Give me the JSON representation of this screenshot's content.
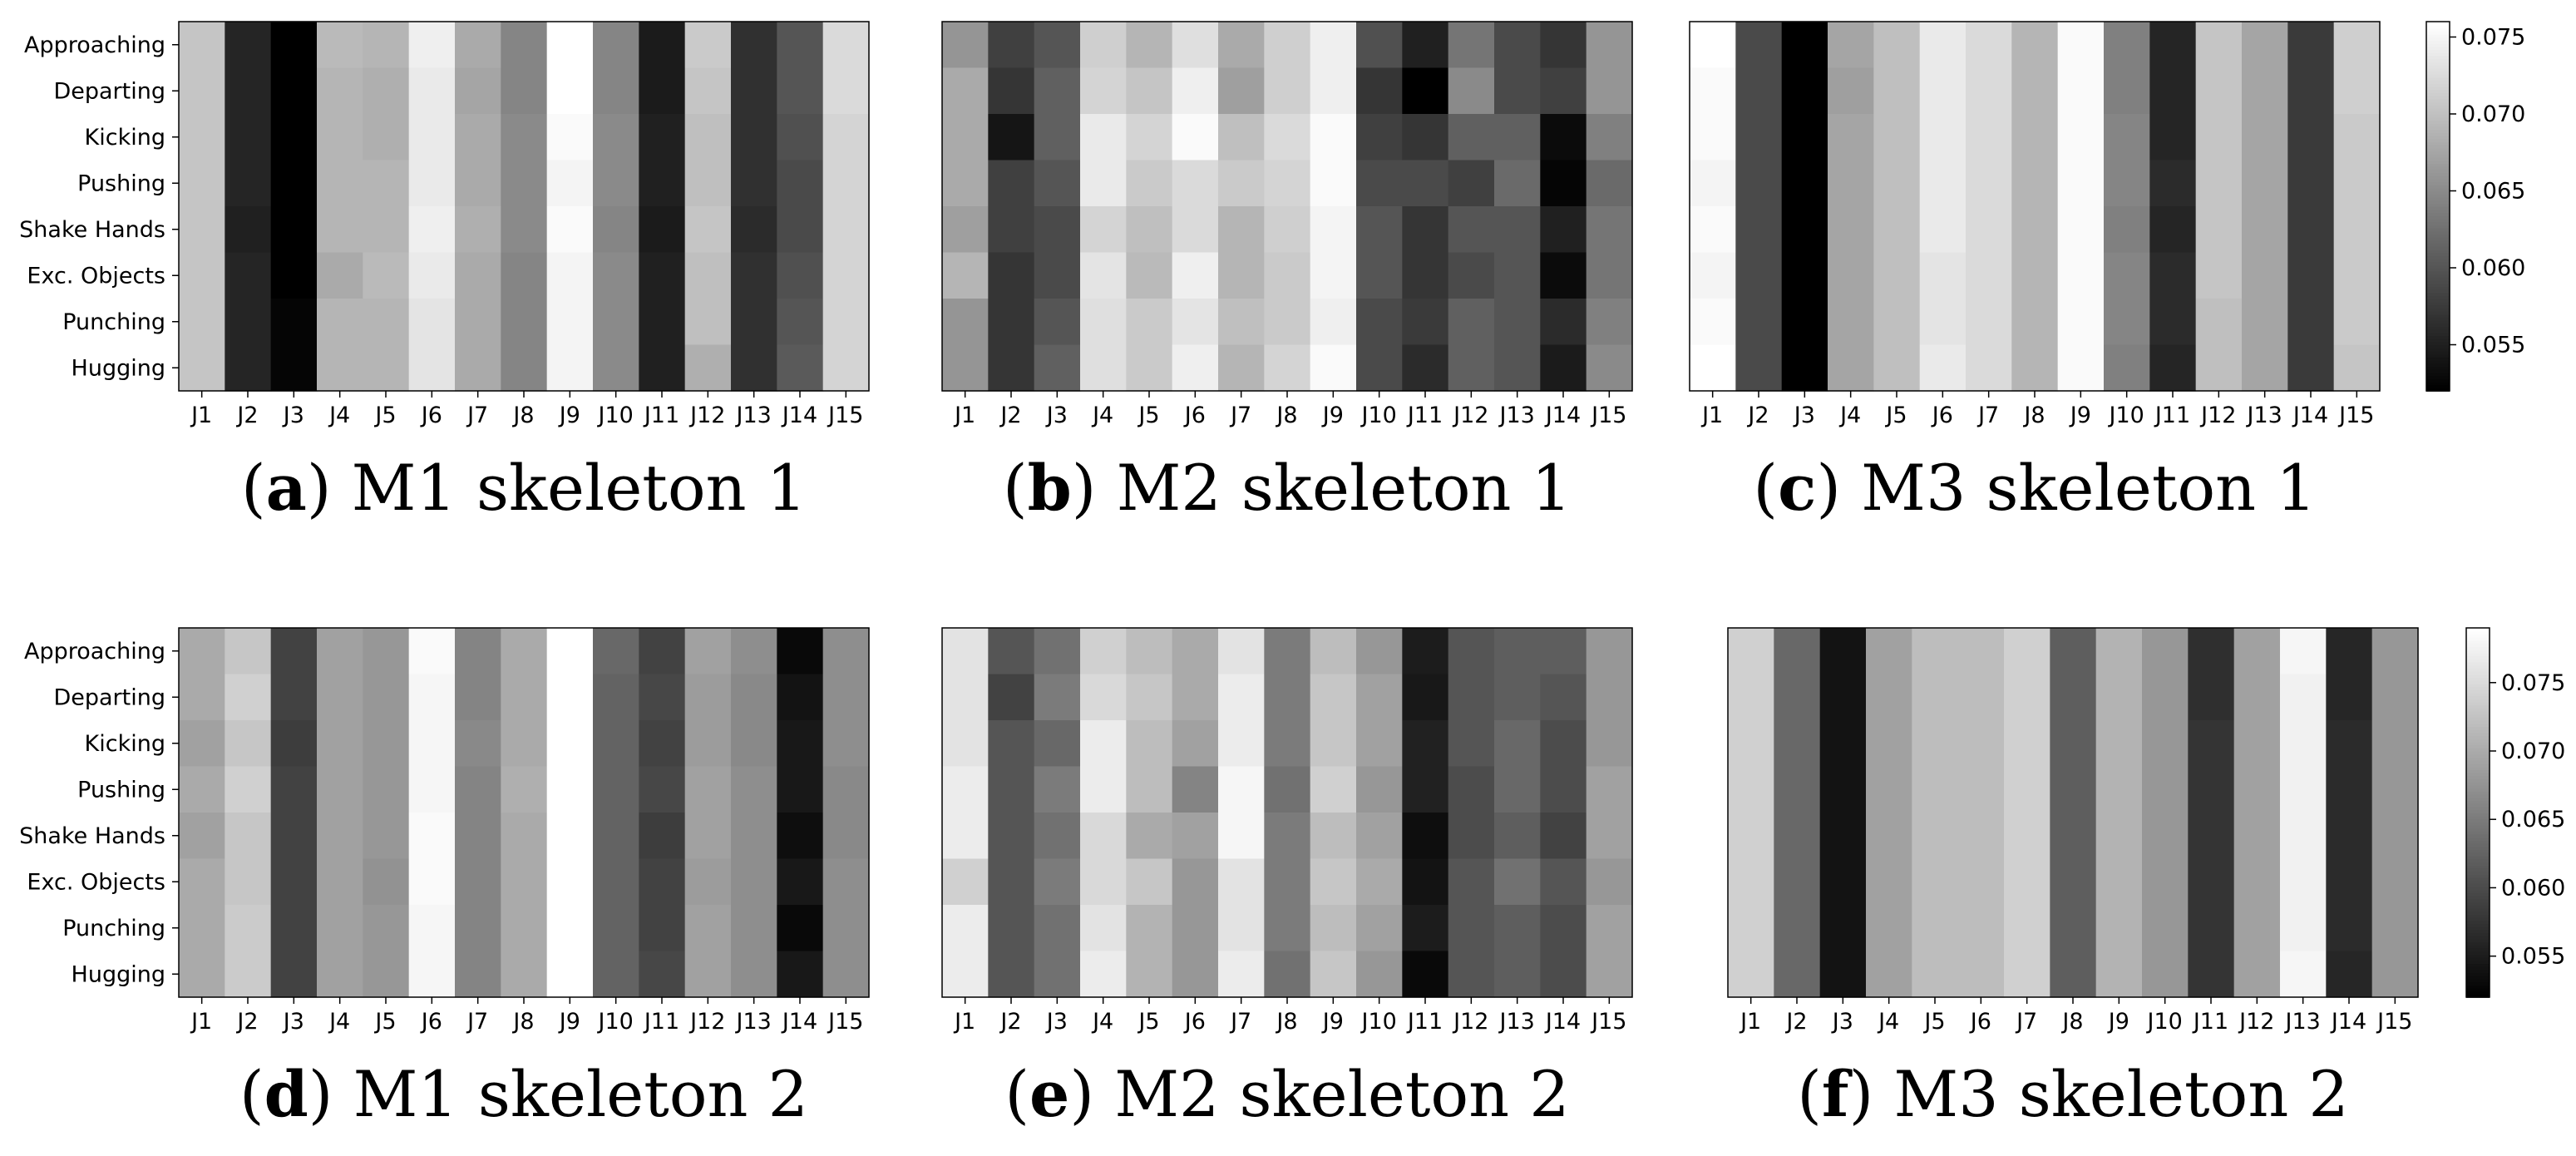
{
  "chart_data": [
    {
      "type": "heatmap",
      "panel_letter": "a",
      "caption": "M1 skeleton 1",
      "rows": [
        "Approaching",
        "Departing",
        "Kicking",
        "Pushing",
        "Shake Hands",
        "Exc. Objects",
        "Punching",
        "Hugging"
      ],
      "columns": [
        "J1",
        "J2",
        "J3",
        "J4",
        "J5",
        "J6",
        "J7",
        "J8",
        "J9",
        "J10",
        "J11",
        "J12",
        "J13",
        "J14",
        "J15"
      ],
      "values": [
        [
          0.0705,
          0.0555,
          0.052,
          0.0695,
          0.069,
          0.0745,
          0.068,
          0.0645,
          0.0765,
          0.0645,
          0.0545,
          0.071,
          0.0565,
          0.06,
          0.0725
        ],
        [
          0.0705,
          0.0555,
          0.052,
          0.069,
          0.0685,
          0.074,
          0.0675,
          0.0645,
          0.076,
          0.0645,
          0.0545,
          0.0705,
          0.0565,
          0.06,
          0.0725
        ],
        [
          0.0705,
          0.0555,
          0.052,
          0.069,
          0.0685,
          0.074,
          0.068,
          0.065,
          0.0755,
          0.065,
          0.055,
          0.07,
          0.0565,
          0.0595,
          0.072
        ],
        [
          0.0705,
          0.0555,
          0.052,
          0.069,
          0.069,
          0.074,
          0.068,
          0.065,
          0.075,
          0.065,
          0.055,
          0.07,
          0.0565,
          0.059,
          0.072
        ],
        [
          0.0705,
          0.055,
          0.052,
          0.069,
          0.069,
          0.0745,
          0.0685,
          0.065,
          0.0755,
          0.0645,
          0.0545,
          0.0705,
          0.056,
          0.059,
          0.072
        ],
        [
          0.0705,
          0.0555,
          0.052,
          0.068,
          0.0695,
          0.074,
          0.068,
          0.0645,
          0.075,
          0.065,
          0.055,
          0.07,
          0.0565,
          0.0595,
          0.072
        ],
        [
          0.0705,
          0.0555,
          0.0525,
          0.069,
          0.069,
          0.0735,
          0.068,
          0.0645,
          0.075,
          0.065,
          0.055,
          0.07,
          0.0565,
          0.06,
          0.072
        ],
        [
          0.0705,
          0.0555,
          0.0525,
          0.069,
          0.069,
          0.0735,
          0.068,
          0.0645,
          0.075,
          0.065,
          0.055,
          0.0685,
          0.0565,
          0.0605,
          0.072
        ]
      ],
      "colorbar": false
    },
    {
      "type": "heatmap",
      "panel_letter": "b",
      "caption": "M2 skeleton 1",
      "rows": [
        "Approaching",
        "Departing",
        "Kicking",
        "Pushing",
        "Shake Hands",
        "Exc. Objects",
        "Punching",
        "Hugging"
      ],
      "columns": [
        "J1",
        "J2",
        "J3",
        "J4",
        "J5",
        "J6",
        "J7",
        "J8",
        "J9",
        "J10",
        "J11",
        "J12",
        "J13",
        "J14",
        "J15"
      ],
      "values": [
        [
          0.066,
          0.058,
          0.06,
          0.0715,
          0.069,
          0.073,
          0.068,
          0.0715,
          0.0745,
          0.0595,
          0.055,
          0.063,
          0.059,
          0.057,
          0.066
        ],
        [
          0.068,
          0.057,
          0.061,
          0.072,
          0.0705,
          0.0745,
          0.067,
          0.0715,
          0.0745,
          0.057,
          0.052,
          0.065,
          0.059,
          0.058,
          0.066
        ],
        [
          0.068,
          0.054,
          0.061,
          0.074,
          0.072,
          0.0755,
          0.07,
          0.0725,
          0.0755,
          0.058,
          0.057,
          0.061,
          0.061,
          0.053,
          0.064
        ],
        [
          0.068,
          0.058,
          0.06,
          0.074,
          0.071,
          0.0725,
          0.071,
          0.072,
          0.0755,
          0.059,
          0.059,
          0.058,
          0.062,
          0.0525,
          0.062
        ],
        [
          0.067,
          0.058,
          0.059,
          0.072,
          0.07,
          0.0725,
          0.069,
          0.0715,
          0.075,
          0.06,
          0.057,
          0.06,
          0.06,
          0.055,
          0.063
        ],
        [
          0.069,
          0.057,
          0.059,
          0.0735,
          0.0695,
          0.0745,
          0.069,
          0.071,
          0.075,
          0.06,
          0.057,
          0.059,
          0.06,
          0.053,
          0.063
        ],
        [
          0.066,
          0.057,
          0.06,
          0.073,
          0.071,
          0.0735,
          0.07,
          0.071,
          0.0745,
          0.059,
          0.0575,
          0.061,
          0.06,
          0.056,
          0.064
        ],
        [
          0.066,
          0.057,
          0.061,
          0.073,
          0.071,
          0.0745,
          0.069,
          0.072,
          0.0755,
          0.059,
          0.056,
          0.061,
          0.06,
          0.0545,
          0.065
        ]
      ],
      "colorbar": false
    },
    {
      "type": "heatmap",
      "panel_letter": "c",
      "caption": "M3 skeleton 1",
      "rows": [
        "Approaching",
        "Departing",
        "Kicking",
        "Pushing",
        "Shake Hands",
        "Exc. Objects",
        "Punching",
        "Hugging"
      ],
      "columns": [
        "J1",
        "J2",
        "J3",
        "J4",
        "J5",
        "J6",
        "J7",
        "J8",
        "J9",
        "J10",
        "J11",
        "J12",
        "J13",
        "J14",
        "J15"
      ],
      "values": [
        [
          0.076,
          0.059,
          0.052,
          0.0675,
          0.07,
          0.074,
          0.0725,
          0.069,
          0.0755,
          0.064,
          0.0555,
          0.0705,
          0.0675,
          0.0575,
          0.0715
        ],
        [
          0.0755,
          0.059,
          0.052,
          0.067,
          0.07,
          0.074,
          0.0725,
          0.069,
          0.0755,
          0.064,
          0.0555,
          0.0705,
          0.0675,
          0.0575,
          0.0715
        ],
        [
          0.0755,
          0.059,
          0.052,
          0.0675,
          0.07,
          0.074,
          0.0725,
          0.069,
          0.0755,
          0.0645,
          0.0555,
          0.0705,
          0.0675,
          0.0575,
          0.071
        ],
        [
          0.075,
          0.059,
          0.052,
          0.0675,
          0.07,
          0.074,
          0.0725,
          0.069,
          0.0755,
          0.0645,
          0.056,
          0.0705,
          0.0675,
          0.0575,
          0.071
        ],
        [
          0.0755,
          0.059,
          0.052,
          0.0675,
          0.07,
          0.074,
          0.0725,
          0.069,
          0.0755,
          0.064,
          0.0555,
          0.0705,
          0.0675,
          0.0575,
          0.071
        ],
        [
          0.075,
          0.059,
          0.052,
          0.0675,
          0.07,
          0.0735,
          0.0725,
          0.069,
          0.0755,
          0.0645,
          0.056,
          0.0705,
          0.0675,
          0.0575,
          0.071
        ],
        [
          0.0755,
          0.059,
          0.052,
          0.0675,
          0.07,
          0.0735,
          0.0725,
          0.069,
          0.0755,
          0.0645,
          0.056,
          0.07,
          0.0675,
          0.0575,
          0.071
        ],
        [
          0.076,
          0.059,
          0.052,
          0.0675,
          0.07,
          0.074,
          0.0725,
          0.069,
          0.0755,
          0.064,
          0.0555,
          0.07,
          0.0675,
          0.0575,
          0.0705
        ]
      ],
      "colorbar": true,
      "colorbar_range": [
        0.052,
        0.076
      ],
      "colorbar_ticks": [
        0.055,
        0.06,
        0.065,
        0.07,
        0.075
      ],
      "colorbar_tick_labels": [
        "0.055",
        "0.060",
        "0.065",
        "0.070",
        "0.075"
      ]
    },
    {
      "type": "heatmap",
      "panel_letter": "d",
      "caption": "M1 skeleton 2",
      "rows": [
        "Approaching",
        "Departing",
        "Kicking",
        "Pushing",
        "Shake Hands",
        "Exc. Objects",
        "Punching",
        "Hugging"
      ],
      "columns": [
        "J1",
        "J2",
        "J3",
        "J4",
        "J5",
        "J6",
        "J7",
        "J8",
        "J9",
        "J10",
        "J11",
        "J12",
        "J13",
        "J14",
        "J15"
      ],
      "values": [
        [
          0.07,
          0.073,
          0.059,
          0.069,
          0.068,
          0.0785,
          0.066,
          0.07,
          0.079,
          0.063,
          0.059,
          0.069,
          0.067,
          0.053,
          0.067
        ],
        [
          0.07,
          0.074,
          0.059,
          0.069,
          0.068,
          0.078,
          0.066,
          0.07,
          0.079,
          0.0625,
          0.0595,
          0.0685,
          0.0665,
          0.054,
          0.067
        ],
        [
          0.069,
          0.073,
          0.0585,
          0.069,
          0.068,
          0.078,
          0.0665,
          0.07,
          0.079,
          0.0625,
          0.059,
          0.0685,
          0.0665,
          0.0545,
          0.067
        ],
        [
          0.07,
          0.074,
          0.059,
          0.069,
          0.068,
          0.078,
          0.066,
          0.0705,
          0.079,
          0.0625,
          0.0595,
          0.069,
          0.067,
          0.0545,
          0.0665
        ],
        [
          0.069,
          0.073,
          0.059,
          0.069,
          0.068,
          0.0785,
          0.066,
          0.07,
          0.079,
          0.0625,
          0.0585,
          0.069,
          0.067,
          0.0535,
          0.0665
        ],
        [
          0.07,
          0.073,
          0.059,
          0.069,
          0.0675,
          0.0785,
          0.066,
          0.07,
          0.079,
          0.0625,
          0.059,
          0.0685,
          0.067,
          0.0545,
          0.067
        ],
        [
          0.07,
          0.0735,
          0.059,
          0.069,
          0.068,
          0.078,
          0.066,
          0.07,
          0.079,
          0.0625,
          0.059,
          0.069,
          0.067,
          0.053,
          0.067
        ],
        [
          0.07,
          0.0735,
          0.059,
          0.069,
          0.068,
          0.078,
          0.066,
          0.07,
          0.079,
          0.0625,
          0.0595,
          0.069,
          0.067,
          0.0545,
          0.067
        ]
      ],
      "colorbar": false
    },
    {
      "type": "heatmap",
      "panel_letter": "e",
      "caption": "M2 skeleton 2",
      "rows": [
        "Approaching",
        "Departing",
        "Kicking",
        "Pushing",
        "Shake Hands",
        "Exc. Objects",
        "Punching",
        "Hugging"
      ],
      "columns": [
        "J1",
        "J2",
        "J3",
        "J4",
        "J5",
        "J6",
        "J7",
        "J8",
        "J9",
        "J10",
        "J11",
        "J12",
        "J13",
        "J14",
        "J15"
      ],
      "values": [
        [
          0.076,
          0.061,
          0.064,
          0.074,
          0.072,
          0.07,
          0.076,
          0.065,
          0.072,
          0.068,
          0.055,
          0.061,
          0.062,
          0.062,
          0.068
        ],
        [
          0.076,
          0.059,
          0.065,
          0.075,
          0.073,
          0.07,
          0.077,
          0.065,
          0.073,
          0.069,
          0.0545,
          0.061,
          0.062,
          0.061,
          0.068
        ],
        [
          0.076,
          0.061,
          0.063,
          0.077,
          0.072,
          0.069,
          0.077,
          0.065,
          0.073,
          0.069,
          0.0555,
          0.061,
          0.063,
          0.06,
          0.068
        ],
        [
          0.077,
          0.061,
          0.065,
          0.077,
          0.072,
          0.066,
          0.078,
          0.064,
          0.074,
          0.068,
          0.0555,
          0.06,
          0.063,
          0.06,
          0.069
        ],
        [
          0.077,
          0.061,
          0.064,
          0.075,
          0.07,
          0.069,
          0.078,
          0.065,
          0.072,
          0.069,
          0.0535,
          0.06,
          0.062,
          0.059,
          0.069
        ],
        [
          0.074,
          0.061,
          0.065,
          0.075,
          0.073,
          0.068,
          0.076,
          0.065,
          0.073,
          0.07,
          0.054,
          0.061,
          0.064,
          0.061,
          0.068
        ],
        [
          0.077,
          0.061,
          0.064,
          0.076,
          0.071,
          0.068,
          0.076,
          0.065,
          0.072,
          0.069,
          0.055,
          0.061,
          0.062,
          0.06,
          0.069
        ],
        [
          0.077,
          0.061,
          0.064,
          0.077,
          0.071,
          0.068,
          0.077,
          0.064,
          0.073,
          0.068,
          0.053,
          0.061,
          0.062,
          0.06,
          0.069
        ]
      ],
      "colorbar": false
    },
    {
      "type": "heatmap",
      "panel_letter": "f",
      "caption": "M3 skeleton 2",
      "rows": [
        "Approaching",
        "Departing",
        "Kicking",
        "Pushing",
        "Shake Hands",
        "Exc. Objects",
        "Punching",
        "Hugging"
      ],
      "columns": [
        "J1",
        "J2",
        "J3",
        "J4",
        "J5",
        "J6",
        "J7",
        "J8",
        "J9",
        "J10",
        "J11",
        "J12",
        "J13",
        "J14",
        "J15"
      ],
      "values": [
        [
          0.074,
          0.063,
          0.054,
          0.069,
          0.072,
          0.072,
          0.074,
          0.062,
          0.071,
          0.068,
          0.057,
          0.069,
          0.078,
          0.056,
          0.068
        ],
        [
          0.074,
          0.063,
          0.054,
          0.069,
          0.072,
          0.072,
          0.074,
          0.062,
          0.071,
          0.068,
          0.057,
          0.069,
          0.0775,
          0.056,
          0.068
        ],
        [
          0.074,
          0.063,
          0.054,
          0.069,
          0.072,
          0.072,
          0.074,
          0.062,
          0.071,
          0.068,
          0.0575,
          0.069,
          0.0775,
          0.0565,
          0.068
        ],
        [
          0.074,
          0.063,
          0.054,
          0.069,
          0.072,
          0.072,
          0.074,
          0.062,
          0.071,
          0.068,
          0.0575,
          0.069,
          0.0775,
          0.0565,
          0.068
        ],
        [
          0.074,
          0.063,
          0.054,
          0.069,
          0.072,
          0.072,
          0.074,
          0.062,
          0.071,
          0.068,
          0.0575,
          0.069,
          0.0775,
          0.0565,
          0.068
        ],
        [
          0.074,
          0.063,
          0.054,
          0.069,
          0.072,
          0.072,
          0.074,
          0.062,
          0.071,
          0.068,
          0.0575,
          0.069,
          0.0775,
          0.0565,
          0.068
        ],
        [
          0.074,
          0.063,
          0.054,
          0.069,
          0.072,
          0.072,
          0.074,
          0.062,
          0.071,
          0.068,
          0.0575,
          0.069,
          0.0775,
          0.0565,
          0.068
        ],
        [
          0.074,
          0.063,
          0.054,
          0.069,
          0.072,
          0.072,
          0.074,
          0.062,
          0.071,
          0.068,
          0.0575,
          0.069,
          0.078,
          0.056,
          0.068
        ]
      ],
      "colorbar": true,
      "colorbar_range": [
        0.052,
        0.079
      ],
      "colorbar_ticks": [
        0.055,
        0.06,
        0.065,
        0.07,
        0.075
      ],
      "colorbar_tick_labels": [
        "0.055",
        "0.060",
        "0.065",
        "0.070",
        "0.075"
      ]
    }
  ]
}
